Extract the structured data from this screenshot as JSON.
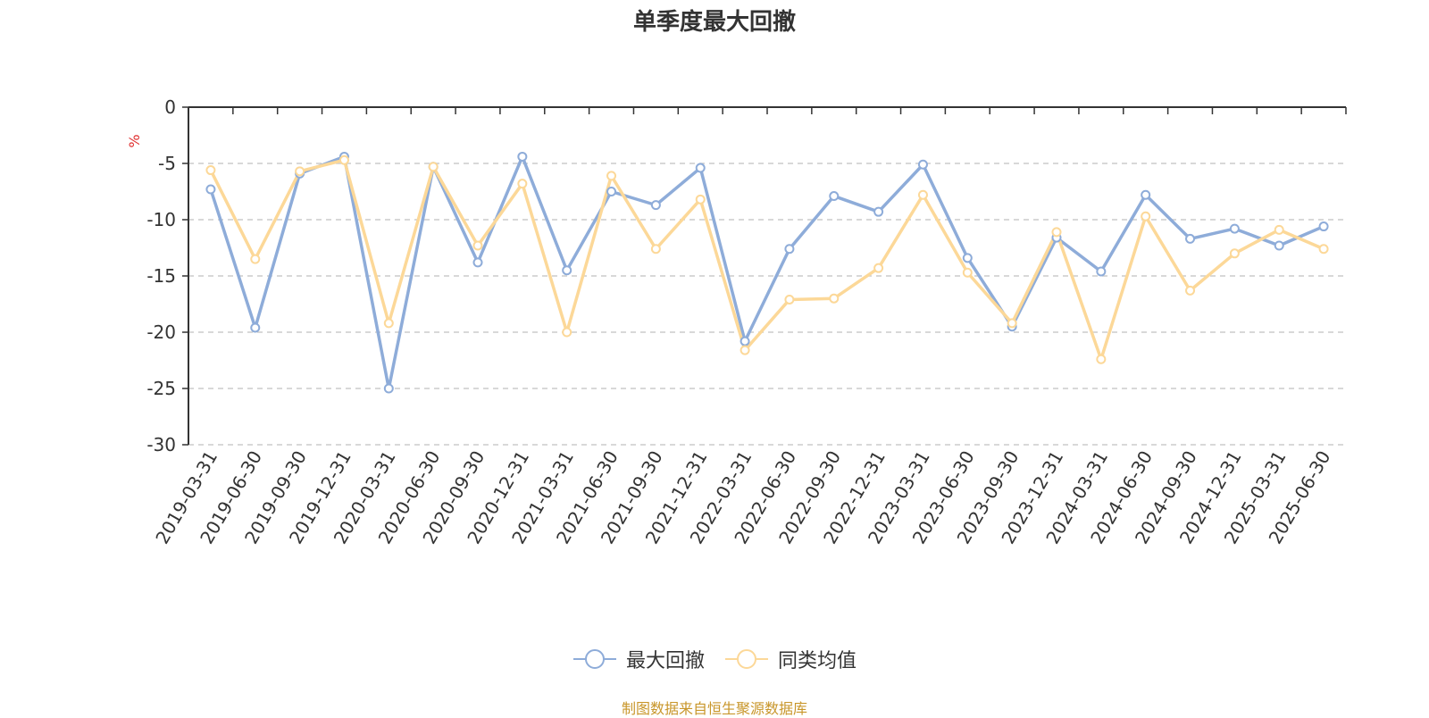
{
  "chart_data": {
    "type": "line",
    "title": "单季度最大回撤",
    "ylabel": "%",
    "ylim": [
      -30,
      0
    ],
    "yticks": [
      0,
      -5,
      -10,
      -15,
      -20,
      -25,
      -30
    ],
    "grid": true,
    "legend_position": "bottom",
    "categories": [
      "2019-03-31",
      "2019-06-30",
      "2019-09-30",
      "2019-12-31",
      "2020-03-31",
      "2020-06-30",
      "2020-09-30",
      "2020-12-31",
      "2021-03-31",
      "2021-06-30",
      "2021-09-30",
      "2021-12-31",
      "2022-03-31",
      "2022-06-30",
      "2022-09-30",
      "2022-12-31",
      "2023-03-31",
      "2023-06-30",
      "2023-09-30",
      "2023-12-31",
      "2024-03-31",
      "2024-06-30",
      "2024-09-30",
      "2024-12-31",
      "2025-03-31",
      "2025-06-30"
    ],
    "series": [
      {
        "name": "最大回撤",
        "color": "#8eacd9",
        "values": [
          -7.3,
          -19.6,
          -5.9,
          -4.4,
          -25.0,
          -5.3,
          -13.8,
          -4.4,
          -14.5,
          -7.5,
          -8.7,
          -5.4,
          -20.8,
          -12.6,
          -7.9,
          -9.3,
          -5.1,
          -13.4,
          -19.5,
          -11.6,
          -14.6,
          -7.8,
          -11.7,
          -10.8,
          -12.3,
          -10.6
        ]
      },
      {
        "name": "同类均值",
        "color": "#fcd898",
        "values": [
          -5.6,
          -13.5,
          -5.7,
          -4.7,
          -19.2,
          -5.3,
          -12.3,
          -6.8,
          -20.0,
          -6.1,
          -12.6,
          -8.2,
          -21.6,
          -17.1,
          -17.0,
          -14.3,
          -7.8,
          -14.7,
          -19.2,
          -11.1,
          -22.4,
          -9.7,
          -16.3,
          -13.0,
          -10.9,
          -12.6
        ]
      }
    ]
  },
  "source_note": "制图数据来自恒生聚源数据库"
}
